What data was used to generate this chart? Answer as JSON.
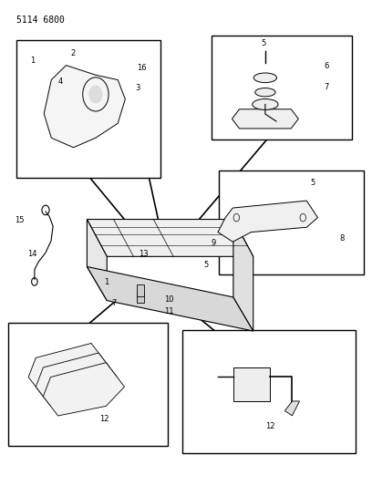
{
  "part_number": "5114 6800",
  "bg_color": "#ffffff",
  "line_color": "#000000",
  "box_fill": "#ffffff",
  "fig_width": 4.08,
  "fig_height": 5.33,
  "dpi": 100
}
